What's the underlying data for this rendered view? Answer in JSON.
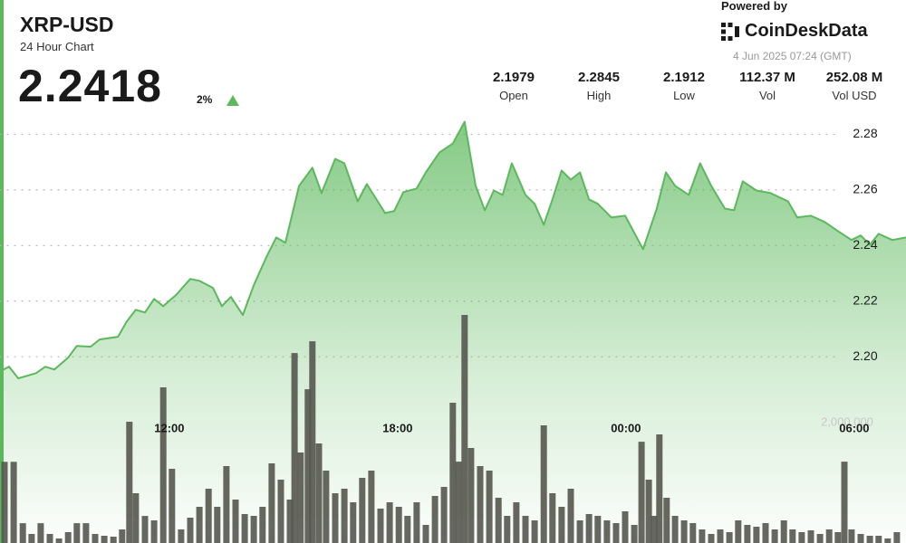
{
  "header": {
    "symbol": "XRP-USD",
    "subtitle": "24 Hour Chart",
    "price": "2.2418",
    "change": "2%",
    "powered_by": "Powered by",
    "brand": "CoinDeskData",
    "timestamp": "4 Jun 2025 07:24 (GMT)",
    "stats": [
      {
        "value": "2.1979",
        "label": "Open"
      },
      {
        "value": "2.2845",
        "label": "High"
      },
      {
        "value": "2.1912",
        "label": "Low"
      },
      {
        "value": "112.37 M",
        "label": "Vol"
      },
      {
        "value": "252.08 M",
        "label": "Vol USD"
      }
    ]
  },
  "chart_data": {
    "type": "line",
    "xlim": [
      7.55,
      31.36
    ],
    "xticks": [
      {
        "value": 12,
        "label": "12:00"
      },
      {
        "value": 18,
        "label": "18:00"
      },
      {
        "value": 24,
        "label": "00:00"
      },
      {
        "value": 30,
        "label": "06:00"
      }
    ],
    "ylim": [
      2.133,
      2.286
    ],
    "yticks": [
      {
        "value": 2.2,
        "label": "2.20"
      },
      2.22,
      2.24,
      2.26,
      2.28
    ],
    "y2lim": [
      0,
      7070000
    ],
    "y2ticks": [
      {
        "value": 2000000,
        "label": "2,000,000"
      }
    ],
    "grid": true,
    "series": [
      {
        "type": "line",
        "color": "#5cb85c",
        "x": [
          7.55,
          7.79,
          8.03,
          8.5,
          8.74,
          8.98,
          9.34,
          9.57,
          9.93,
          10.17,
          10.65,
          10.88,
          11.12,
          11.36,
          11.6,
          11.84,
          12.19,
          12.55,
          12.79,
          13.15,
          13.38,
          13.62,
          13.93,
          14.22,
          14.57,
          14.81,
          15.05,
          15.41,
          15.76,
          16.0,
          16.36,
          16.6,
          16.95,
          17.19,
          17.67,
          17.91,
          18.15,
          18.5,
          18.74,
          19.1,
          19.45,
          19.76,
          20.05,
          20.29,
          20.53,
          20.76,
          21.0,
          21.36,
          21.6,
          21.84,
          22.07,
          22.31,
          22.55,
          22.79,
          23.03,
          23.26,
          23.62,
          23.98,
          24.45,
          24.81,
          25.05,
          25.29,
          25.65,
          25.95,
          26.24,
          26.6,
          26.84,
          27.07,
          27.43,
          27.79,
          28.26,
          28.5,
          28.86,
          29.22,
          29.57,
          29.93,
          30.17,
          30.41,
          30.64,
          31.0,
          31.36
        ],
        "values": [
          2.1948,
          2.1964,
          2.1922,
          2.1941,
          2.1964,
          2.1954,
          2.1997,
          2.2039,
          2.2036,
          2.2062,
          2.2072,
          2.2127,
          2.2169,
          2.2159,
          2.2208,
          2.2182,
          2.2224,
          2.228,
          2.2273,
          2.2247,
          2.2182,
          2.2215,
          2.215,
          2.2257,
          2.2364,
          2.2429,
          2.241,
          2.2615,
          2.268,
          2.2589,
          2.2712,
          2.2696,
          2.2559,
          2.2621,
          2.2517,
          2.2524,
          2.2592,
          2.2605,
          2.2663,
          2.2735,
          2.2767,
          2.2845,
          2.2615,
          2.2527,
          2.2598,
          2.2582,
          2.2696,
          2.2582,
          2.255,
          2.2475,
          2.2566,
          2.267,
          2.2637,
          2.2663,
          2.2566,
          2.255,
          2.2501,
          2.2507,
          2.2387,
          2.2533,
          2.2663,
          2.2615,
          2.2582,
          2.2696,
          2.2615,
          2.2533,
          2.2527,
          2.2631,
          2.2598,
          2.2589,
          2.2559,
          2.2501,
          2.2507,
          2.2485,
          2.2452,
          2.242,
          2.2436,
          2.2403,
          2.2442,
          2.242,
          2.2429
        ]
      },
      {
        "type": "bar",
        "axis": "y2",
        "color": "#55564f",
        "x": [
          7.67,
          7.91,
          8.15,
          8.38,
          8.62,
          8.86,
          9.1,
          9.34,
          9.57,
          9.81,
          10.05,
          10.29,
          10.53,
          10.76,
          10.95,
          11.12,
          11.36,
          11.6,
          11.84,
          12.07,
          12.31,
          12.55,
          12.79,
          13.03,
          13.26,
          13.5,
          13.74,
          13.98,
          14.22,
          14.45,
          14.69,
          14.93,
          15.17,
          15.29,
          15.45,
          15.64,
          15.76,
          15.93,
          16.12,
          16.36,
          16.6,
          16.83,
          17.07,
          17.31,
          17.55,
          17.79,
          18.03,
          18.26,
          18.5,
          18.74,
          18.98,
          19.22,
          19.45,
          19.6,
          19.76,
          19.93,
          20.17,
          20.41,
          20.65,
          20.88,
          21.12,
          21.36,
          21.6,
          21.84,
          22.07,
          22.31,
          22.55,
          22.79,
          23.03,
          23.26,
          23.5,
          23.74,
          23.98,
          24.22,
          24.41,
          24.6,
          24.74,
          24.88,
          25.07,
          25.29,
          25.53,
          25.76,
          26.0,
          26.24,
          26.48,
          26.72,
          26.95,
          27.19,
          27.43,
          27.67,
          27.91,
          28.15,
          28.38,
          28.62,
          28.86,
          29.1,
          29.34,
          29.57,
          29.74,
          29.93,
          30.17,
          30.41,
          30.64,
          30.88,
          31.12
        ],
        "values": [
          1350000,
          1350000,
          330000,
          150000,
          330000,
          150000,
          75000,
          180000,
          330000,
          330000,
          150000,
          120000,
          105000,
          225000,
          2015000,
          827000,
          450000,
          376000,
          2587000,
          1233000,
          225000,
          421000,
          602000,
          902000,
          602000,
          1278000,
          722000,
          481000,
          451000,
          602000,
          1323000,
          1053000,
          722000,
          3158000,
          1504000,
          2556000,
          3353000,
          1654000,
          1203000,
          827000,
          902000,
          677000,
          1083000,
          1203000,
          571000,
          677000,
          602000,
          451000,
          677000,
          301000,
          782000,
          932000,
          2331000,
          1353000,
          3790000,
          1579000,
          1278000,
          1203000,
          752000,
          451000,
          677000,
          451000,
          376000,
          1955000,
          827000,
          602000,
          902000,
          376000,
          481000,
          451000,
          376000,
          331000,
          526000,
          301000,
          1684000,
          1053000,
          451000,
          1805000,
          752000,
          451000,
          376000,
          331000,
          225000,
          150000,
          225000,
          180000,
          376000,
          301000,
          271000,
          331000,
          225000,
          376000,
          225000,
          180000,
          211000,
          150000,
          225000,
          180000,
          1353000,
          225000,
          150000,
          120000,
          120000,
          75000,
          180000
        ]
      }
    ]
  }
}
